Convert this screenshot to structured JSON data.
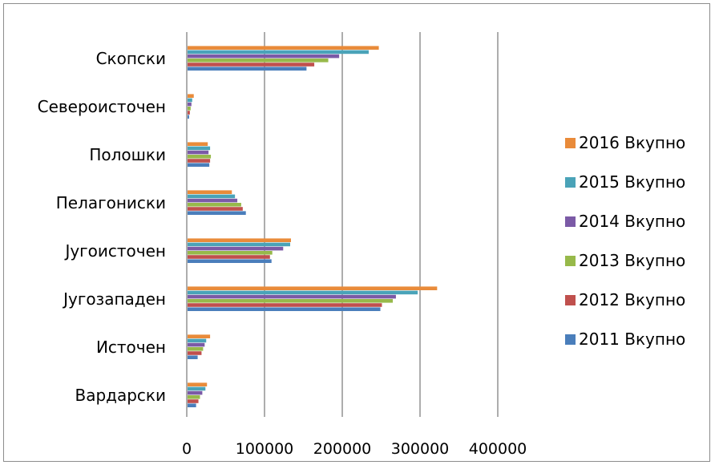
{
  "chart_data": {
    "type": "bar",
    "orientation": "horizontal",
    "title": "",
    "xlabel": "",
    "ylabel": "",
    "xlim": [
      0,
      400000
    ],
    "x_ticks": [
      "0",
      "100000",
      "200000",
      "300000",
      "400000"
    ],
    "grid": "vertical",
    "legend_position": "right",
    "categories": [
      "Скопски",
      "Североисточен",
      "Полошки",
      "Пелагониски",
      "Југоисточен",
      "Југозападен",
      "Источен",
      "Вардарски"
    ],
    "series": [
      {
        "name": "2016 Вкупно",
        "color": "#e98b3a",
        "values": [
          247000,
          9000,
          27000,
          58000,
          134000,
          322000,
          30000,
          26000
        ]
      },
      {
        "name": "2015 Вкупно",
        "color": "#4aa3b8",
        "values": [
          234000,
          7000,
          30000,
          62000,
          133000,
          297000,
          25000,
          24000
        ]
      },
      {
        "name": "2014 Вкупно",
        "color": "#7b5aa6",
        "values": [
          196000,
          6000,
          28000,
          65000,
          124000,
          269000,
          23000,
          20000
        ]
      },
      {
        "name": "2013 Вкупно",
        "color": "#97b94a",
        "values": [
          182000,
          5000,
          31000,
          70000,
          110000,
          265000,
          21000,
          17000
        ]
      },
      {
        "name": "2012 Вкупно",
        "color": "#c0504d",
        "values": [
          164000,
          4000,
          30000,
          72000,
          107000,
          251000,
          19000,
          15000
        ]
      },
      {
        "name": "2011 Вкупно",
        "color": "#4a7ebb",
        "values": [
          154000,
          3000,
          29000,
          76000,
          109000,
          249000,
          14000,
          12000
        ]
      }
    ]
  }
}
